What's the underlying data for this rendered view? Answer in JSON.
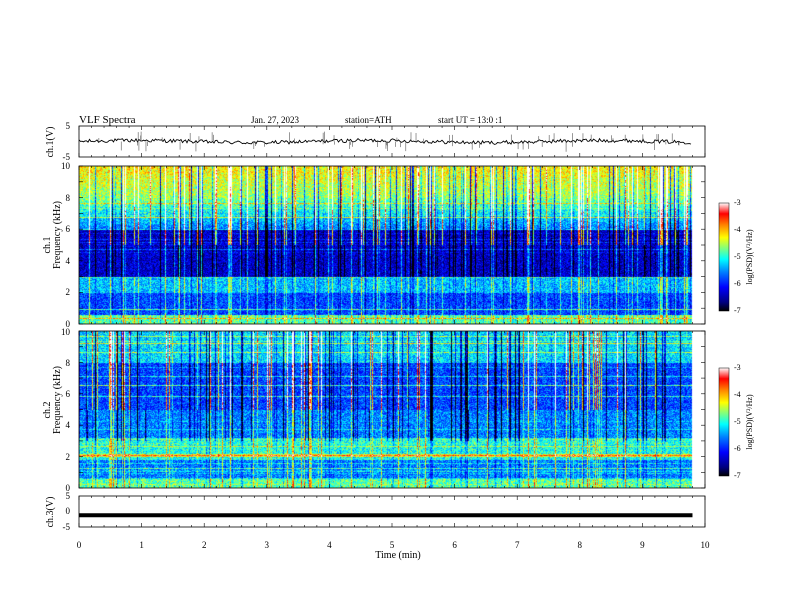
{
  "header": {
    "title": "VLF Spectra",
    "date": "Jan. 27, 2023",
    "station": "station=ATH",
    "start_ut": "start UT = 13:0 :1"
  },
  "colors": {
    "colormap": [
      "#000000",
      "#00007f",
      "#0000ff",
      "#007fff",
      "#00ffff",
      "#7fff7f",
      "#ffff00",
      "#ff7f00",
      "#ff0000",
      "#ffffff"
    ],
    "waveform": "#000000",
    "axes": "#000000"
  },
  "chart_data": [
    {
      "type": "line",
      "id": "ch1-waveform",
      "ylabel": "ch.1(V)",
      "xlim": [
        0,
        10
      ],
      "ylim": [
        -5,
        5
      ],
      "yticks": [
        "5",
        "-5"
      ],
      "data_end_min": 9.8,
      "approx_level": 0,
      "approx_amplitude": 0.6
    },
    {
      "type": "heatmap",
      "id": "ch1-spectrogram",
      "ylabel": "Frequency (kHz)",
      "channel_label": "ch.1",
      "xlim": [
        0,
        10
      ],
      "ylim": [
        0,
        10
      ],
      "yticks": [
        "0",
        "2",
        "4",
        "6",
        "8",
        "10"
      ],
      "data_end_min": 9.8,
      "colorbar": {
        "label": "log(PSD)(V²/Hz)",
        "range": [
          -7,
          -3
        ],
        "ticks": [
          "-3",
          "-4",
          "-5",
          "-6",
          "-7"
        ]
      }
    },
    {
      "type": "heatmap",
      "id": "ch2-spectrogram",
      "ylabel": "Frequency (kHz)",
      "channel_label": "ch.2",
      "xlim": [
        0,
        10
      ],
      "ylim": [
        0,
        10
      ],
      "yticks": [
        "0",
        "2",
        "4",
        "6",
        "8",
        "10"
      ],
      "data_end_min": 9.8,
      "colorbar": {
        "label": "log(PSD)(V²/Hz)",
        "range": [
          -7,
          -3
        ],
        "ticks": [
          "-3",
          "-4",
          "-5",
          "-6",
          "-7"
        ]
      }
    },
    {
      "type": "line",
      "id": "ch3-waveform",
      "ylabel": "ch.3(V)",
      "xlabel": "Time (min)",
      "xlim": [
        0,
        10
      ],
      "ylim": [
        -5,
        5
      ],
      "yticks": [
        "5",
        "0",
        "-5"
      ],
      "xticks": [
        "0",
        "1",
        "2",
        "3",
        "4",
        "5",
        "6",
        "7",
        "8",
        "9",
        "10"
      ],
      "data_end_min": 9.8,
      "approx_level": -1.2
    }
  ]
}
